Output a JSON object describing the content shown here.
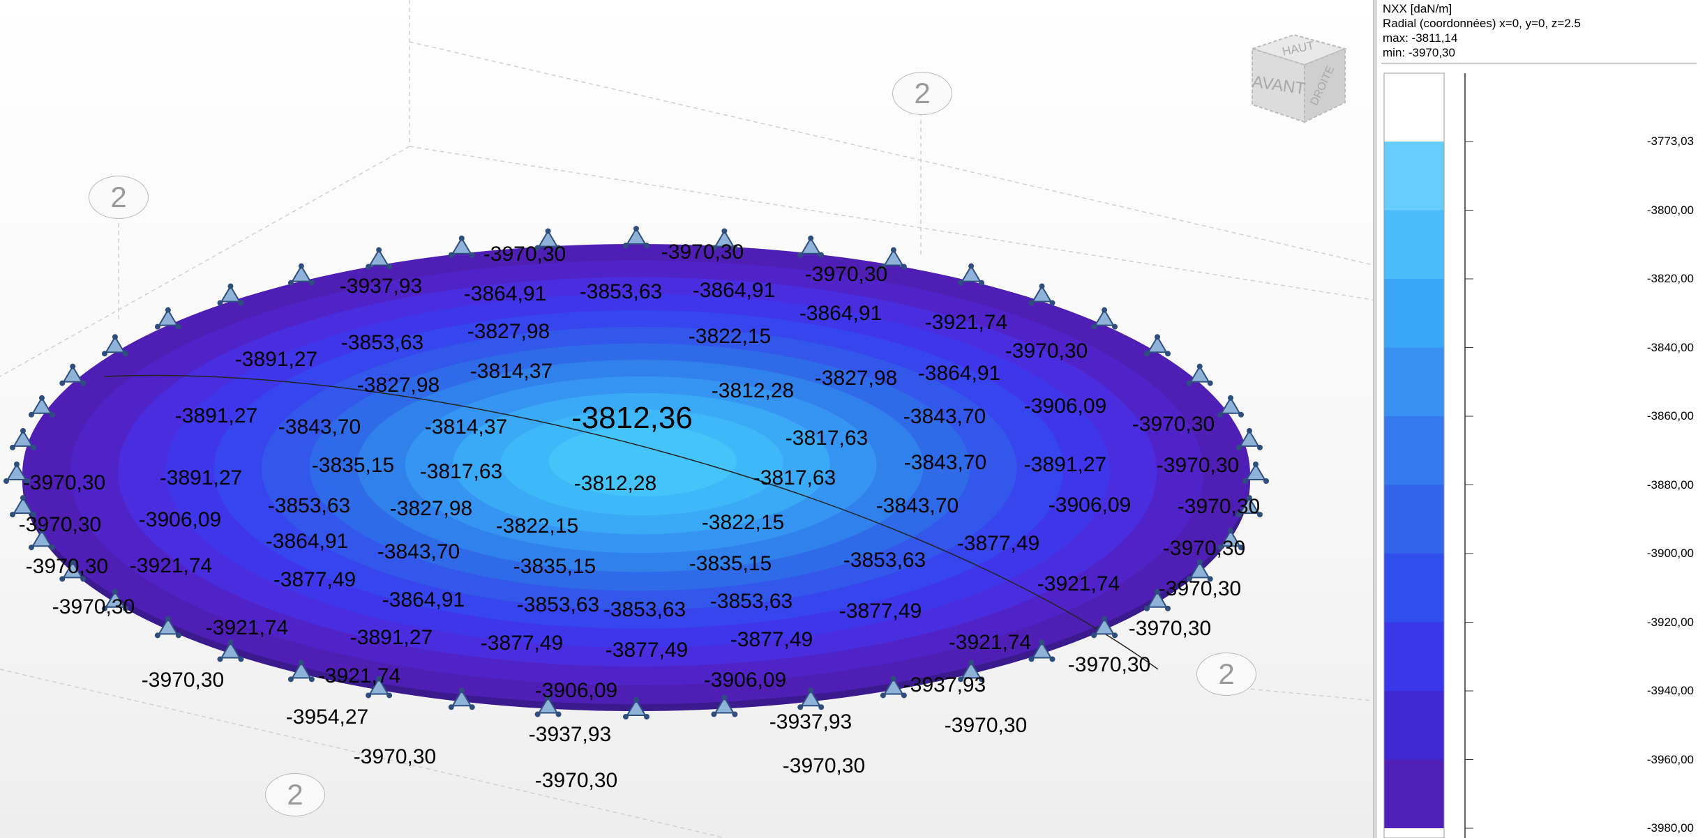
{
  "legend": {
    "quantity": "NXX [daN/m]",
    "system": "Radial (coordonnées) x=0, y=0, z=2.5",
    "max": "max: -3811,14",
    "min": "min: -3970,30",
    "ticks": [
      "-3773,03",
      "-3800,00",
      "-3820,00",
      "-3840,00",
      "-3860,00",
      "-3880,00",
      "-3900,00",
      "-3920,00",
      "-3940,00",
      "-3960,00",
      "-3980,00"
    ],
    "colors": [
      "#ffffff",
      "#67cdfb",
      "#4bbcfb",
      "#3aa6f6",
      "#3790f2",
      "#347aee",
      "#3164ea",
      "#2f4eec",
      "#3a36ea",
      "#3f27d4",
      "#4f1fb7"
    ]
  },
  "nav_cube": {
    "top": "HAUT",
    "front": "AVANT",
    "right": "DROITE"
  },
  "axis_markers": [
    "2",
    "2",
    "2",
    "2"
  ],
  "plate": {
    "ring_colors": [
      "#4f1fb5",
      "#5023c9",
      "#4b2de0",
      "#3f35ea",
      "#3645ee",
      "#3257ea",
      "#2f6be8",
      "#3181ed",
      "#3695f2",
      "#3aa9f6",
      "#3eb8f9",
      "#45c4fa"
    ],
    "values": [
      "-3970,30",
      "-3970,30",
      "-3970,30",
      "-3970,30",
      "-3970,30",
      "-3970,30",
      "-3970,30",
      "-3970,30",
      "-3970,30",
      "-3970,30",
      "-3970,30",
      "-3970,30",
      "-3970,30",
      "-3970,30",
      "-3970,30",
      "-3970,30",
      "-3970,30",
      "-3970,30",
      "-3970,30",
      "-3970,30",
      "-3937,93",
      "-3864,91",
      "-3853,63",
      "-3864,91",
      "-3864,91",
      "-3921,74",
      "-3891,27",
      "-3853,63",
      "-3827,98",
      "-3822,15",
      "-3827,98",
      "-3864,91",
      "-3827,98",
      "-3814,37",
      "-3812,36",
      "-3812,28",
      "-3906,09",
      "-3891,27",
      "-3843,70",
      "-3814,37",
      "-3817,63",
      "-3843,70",
      "-3835,15",
      "-3817,63",
      "-3812,28",
      "-3817,63",
      "-3843,70",
      "-3891,27",
      "-3891,27",
      "-3853,63",
      "-3827,98",
      "-3822,15",
      "-3822,15",
      "-3843,70",
      "-3906,09",
      "-3906,09",
      "-3864,91",
      "-3843,70",
      "-3835,15",
      "-3835,15",
      "-3853,63",
      "-3877,49",
      "-3921,74",
      "-3877,49",
      "-3864,91",
      "-3853,63",
      "-3853,63",
      "-3853,63",
      "-3877,49",
      "-3921,74",
      "-3921,74",
      "-3891,27",
      "-3877,49",
      "-3877,49",
      "-3877,49",
      "-3921,74",
      "-3921,74",
      "-3906,09",
      "-3906,09",
      "-3937,93",
      "-3954,27",
      "-3937,93",
      "-3937,93"
    ]
  }
}
